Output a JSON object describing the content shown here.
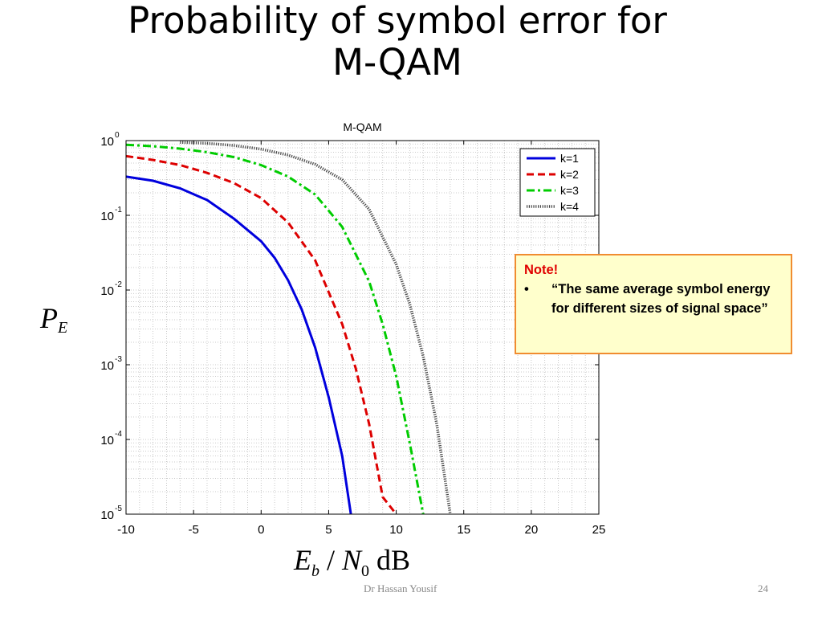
{
  "slide": {
    "title_line1": "Probability of symbol error for",
    "title_line2": "M-QAM",
    "footer_author": "Dr Hassan Yousif",
    "page_number": "24"
  },
  "axes_labels": {
    "y_symbol": "P",
    "y_subscript": "E",
    "x_symbol_e": "E",
    "x_sub_b": "b",
    "x_slash": " / ",
    "x_symbol_n": "N",
    "x_sub_0": "0",
    "x_unit": " dB"
  },
  "note": {
    "title": "Note!",
    "bullet": "•",
    "text": "“The same average symbol energy for different sizes of signal space”",
    "border_color": "#f08c30",
    "background_color": "#ffffcc",
    "title_color": "#e00000"
  },
  "chart_data": {
    "type": "line",
    "title": "M-QAM",
    "xlabel": "",
    "ylabel": "",
    "xlim": [
      -10,
      25
    ],
    "ylim": [
      1e-05,
      1
    ],
    "yscale": "log",
    "grid": true,
    "legend_position": "top-right",
    "x_ticks": [
      "-10",
      "-5",
      "0",
      "5",
      "10",
      "15",
      "20",
      "25"
    ],
    "y_ticks": [
      {
        "base": "10",
        "exp": "0"
      },
      {
        "base": "10",
        "exp": "-1"
      },
      {
        "base": "10",
        "exp": "-2"
      },
      {
        "base": "10",
        "exp": "-3"
      },
      {
        "base": "10",
        "exp": "-4"
      },
      {
        "base": "10",
        "exp": "-5"
      }
    ],
    "series": [
      {
        "name": "k=1",
        "color": "#0000dd",
        "style": "solid",
        "x": [
          -10,
          -8,
          -6,
          -4,
          -2,
          0,
          1,
          2,
          3,
          4,
          5,
          6,
          7,
          7.5,
          8
        ],
        "y": [
          0.33,
          0.29,
          0.23,
          0.16,
          0.09,
          0.045,
          0.027,
          0.0135,
          0.0055,
          0.0017,
          0.00037,
          6e-05,
          3.7e-06,
          1.2e-06,
          1e-05
        ]
      },
      {
        "name": "k=2",
        "color": "#dd0000",
        "style": "dashed",
        "x": [
          -10,
          -8,
          -6,
          -4,
          -2,
          0,
          2,
          4,
          6,
          7,
          8,
          9,
          10
        ],
        "y": [
          0.62,
          0.55,
          0.47,
          0.37,
          0.27,
          0.17,
          0.08,
          0.025,
          0.0035,
          0.0009,
          0.00016,
          1.7e-05,
          1e-05
        ]
      },
      {
        "name": "k=3",
        "color": "#00cc00",
        "style": "dashdot",
        "x": [
          -10,
          -8,
          -6,
          -4,
          -2,
          0,
          2,
          4,
          6,
          8,
          9,
          10,
          11,
          12
        ],
        "y": [
          0.88,
          0.84,
          0.78,
          0.7,
          0.6,
          0.47,
          0.33,
          0.19,
          0.07,
          0.013,
          0.0035,
          0.0007,
          9e-05,
          1e-05
        ]
      },
      {
        "name": "k=4",
        "color": "#444444",
        "style": "dotted",
        "x": [
          -6,
          -4,
          -2,
          0,
          2,
          4,
          6,
          8,
          10,
          11,
          12,
          13,
          14
        ],
        "y": [
          0.95,
          0.92,
          0.86,
          0.77,
          0.64,
          0.48,
          0.3,
          0.12,
          0.022,
          0.0065,
          0.0013,
          0.00016,
          1e-05
        ]
      }
    ]
  }
}
